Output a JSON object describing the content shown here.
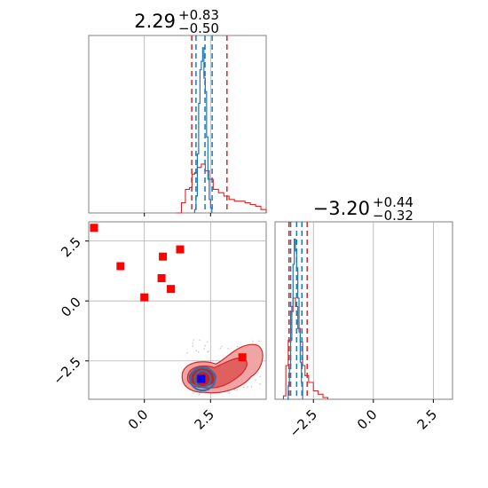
{
  "chart_data": {
    "type": "corner",
    "colors": {
      "red": "#d62728",
      "blue": "#1f77b4",
      "marker_red": "#ff0000",
      "marker_blue": "#0000ff",
      "grid": "#b0b0b0"
    },
    "titles": [
      {
        "value": "2.29",
        "plus": "+0.83",
        "minus": "−0.50"
      },
      {
        "value": "−3.20",
        "plus": "+0.44",
        "minus": "−0.32"
      }
    ],
    "param1_range": [
      -2.1,
      4.6
    ],
    "param2_range": [
      -4.1,
      3.3
    ],
    "x_ticks": [
      {
        "label": "0.0",
        "value": 0.0
      },
      {
        "label": "2.5",
        "value": 2.5
      }
    ],
    "y_ticks": [
      {
        "label": "2.5",
        "value": 2.5
      },
      {
        "label": "0.0",
        "value": 0.0
      },
      {
        "label": "−2.5",
        "value": -2.5
      }
    ],
    "param2_ticks": [
      {
        "label": "−2.5",
        "value": -2.5
      },
      {
        "label": "0.0",
        "value": 0.0
      },
      {
        "label": "2.5",
        "value": 2.5
      }
    ],
    "param1_quantile_lines": {
      "red": [
        1.79,
        3.12
      ],
      "blue": [
        1.95,
        2.29,
        2.56
      ]
    },
    "param2_quantile_lines": {
      "red": [
        -3.52,
        -2.76
      ],
      "blue": [
        -3.45,
        -3.2,
        -2.98
      ]
    },
    "red_squares": [
      {
        "x": -1.9,
        "y": 3.05
      },
      {
        "x": -0.9,
        "y": 1.45
      },
      {
        "x": 0.0,
        "y": 0.15
      },
      {
        "x": 0.7,
        "y": 1.85
      },
      {
        "x": 0.65,
        "y": 0.95
      },
      {
        "x": 1.0,
        "y": 0.5
      },
      {
        "x": 1.35,
        "y": 2.15
      },
      {
        "x": 3.7,
        "y": -2.35
      }
    ],
    "blue_square": {
      "x": 2.15,
      "y": -3.25
    },
    "hist1_blue": [
      [
        1.9,
        0.02
      ],
      [
        1.95,
        0.1
      ],
      [
        2.0,
        0.35
      ],
      [
        2.05,
        0.65
      ],
      [
        2.1,
        0.85
      ],
      [
        2.15,
        0.9
      ],
      [
        2.2,
        0.98
      ],
      [
        2.25,
        0.8
      ],
      [
        2.3,
        0.72
      ],
      [
        2.35,
        0.45
      ],
      [
        2.4,
        0.2
      ],
      [
        2.45,
        0.08
      ],
      [
        2.5,
        0.03
      ],
      [
        2.55,
        0.0
      ]
    ],
    "hist1_red": [
      [
        1.2,
        0.0
      ],
      [
        1.4,
        0.06
      ],
      [
        1.55,
        0.14
      ],
      [
        1.7,
        0.15
      ],
      [
        1.8,
        0.23
      ],
      [
        1.9,
        0.24
      ],
      [
        2.0,
        0.27
      ],
      [
        2.15,
        0.29
      ],
      [
        2.3,
        0.25
      ],
      [
        2.45,
        0.2
      ],
      [
        2.6,
        0.14
      ],
      [
        2.8,
        0.12
      ],
      [
        3.0,
        0.1
      ],
      [
        3.2,
        0.08
      ],
      [
        3.4,
        0.07
      ],
      [
        3.6,
        0.07
      ],
      [
        3.8,
        0.06
      ],
      [
        4.0,
        0.05
      ],
      [
        4.2,
        0.04
      ],
      [
        4.4,
        0.02
      ],
      [
        4.6,
        0.0
      ]
    ],
    "hist2_blue": [
      [
        -3.6,
        0.0
      ],
      [
        -3.55,
        0.08
      ],
      [
        -3.5,
        0.18
      ],
      [
        -3.45,
        0.35
      ],
      [
        -3.4,
        0.55
      ],
      [
        -3.35,
        0.8
      ],
      [
        -3.3,
        0.95
      ],
      [
        -3.25,
        0.88
      ],
      [
        -3.2,
        0.78
      ],
      [
        -3.15,
        0.6
      ],
      [
        -3.1,
        0.4
      ],
      [
        -3.05,
        0.22
      ],
      [
        -3.0,
        0.1
      ],
      [
        -2.95,
        0.0
      ]
    ],
    "hist2_red": [
      [
        -3.75,
        0.02
      ],
      [
        -3.65,
        0.2
      ],
      [
        -3.55,
        0.35
      ],
      [
        -3.45,
        0.52
      ],
      [
        -3.35,
        0.6
      ],
      [
        -3.25,
        0.55
      ],
      [
        -3.15,
        0.42
      ],
      [
        -3.05,
        0.34
      ],
      [
        -2.95,
        0.2
      ],
      [
        -2.85,
        0.14
      ],
      [
        -2.7,
        0.1
      ],
      [
        -2.5,
        0.05
      ],
      [
        -2.3,
        0.03
      ],
      [
        -2.1,
        0.01
      ],
      [
        -1.9,
        0.0
      ]
    ]
  }
}
